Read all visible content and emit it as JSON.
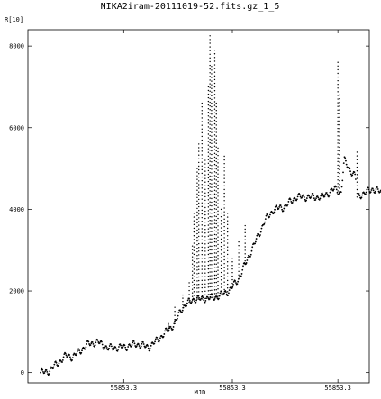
{
  "chart_data": {
    "type": "scatter",
    "title": "NIKA2iram-20111019-52.fits.gz_1_5",
    "xlabel": "MJD",
    "ylabel": "R[10]",
    "xlim": [
      0,
      1
    ],
    "ylim": [
      -250,
      8400
    ],
    "x_tick_labels": [
      {
        "x": 0.26,
        "label": "55853.3"
      },
      {
        "x": 0.6,
        "label": "55853.3"
      },
      {
        "x": 0.93,
        "label": "55853.3"
      }
    ],
    "y_ticks": [
      0,
      2000,
      4000,
      6000,
      8000
    ],
    "grid": false,
    "series": [
      {
        "color": "#000000",
        "baseline": [
          [
            0.0,
            0
          ],
          [
            0.02,
            10
          ],
          [
            0.05,
            200
          ],
          [
            0.08,
            420
          ],
          [
            0.1,
            380
          ],
          [
            0.15,
            700
          ],
          [
            0.18,
            750
          ],
          [
            0.21,
            600
          ],
          [
            0.26,
            620
          ],
          [
            0.3,
            700
          ],
          [
            0.34,
            620
          ],
          [
            0.38,
            900
          ],
          [
            0.42,
            1200
          ],
          [
            0.44,
            1550
          ],
          [
            0.46,
            1700
          ],
          [
            0.48,
            1800
          ],
          [
            0.5,
            1800
          ],
          [
            0.55,
            1850
          ],
          [
            0.59,
            2000
          ],
          [
            0.62,
            2300
          ],
          [
            0.66,
            3000
          ],
          [
            0.69,
            3500
          ],
          [
            0.7,
            3700
          ],
          [
            0.73,
            4000
          ],
          [
            0.76,
            4050
          ],
          [
            0.8,
            4300
          ],
          [
            0.84,
            4300
          ],
          [
            0.88,
            4300
          ],
          [
            0.92,
            4500
          ],
          [
            0.94,
            4400
          ],
          [
            0.95,
            5200
          ],
          [
            0.965,
            5000
          ],
          [
            0.985,
            4800
          ],
          [
            0.99,
            4300
          ],
          [
            1.0,
            4350
          ],
          [
            1.04,
            4500
          ],
          [
            1.07,
            4400
          ]
        ],
        "spikes": [
          [
            0.4,
            1200
          ],
          [
            0.42,
            1600
          ],
          [
            0.445,
            1900
          ],
          [
            0.465,
            2200
          ],
          [
            0.475,
            3100
          ],
          [
            0.48,
            3900
          ],
          [
            0.49,
            5000
          ],
          [
            0.495,
            5600
          ],
          [
            0.505,
            6600
          ],
          [
            0.515,
            5200
          ],
          [
            0.525,
            7000
          ],
          [
            0.53,
            8250
          ],
          [
            0.535,
            7500
          ],
          [
            0.545,
            7900
          ],
          [
            0.55,
            6600
          ],
          [
            0.555,
            5500
          ],
          [
            0.565,
            4000
          ],
          [
            0.575,
            5300
          ],
          [
            0.585,
            3900
          ],
          [
            0.6,
            2800
          ],
          [
            0.62,
            3200
          ],
          [
            0.64,
            3600
          ],
          [
            0.93,
            7600
          ],
          [
            0.935,
            6800
          ],
          [
            0.99,
            5400
          ]
        ]
      }
    ]
  }
}
